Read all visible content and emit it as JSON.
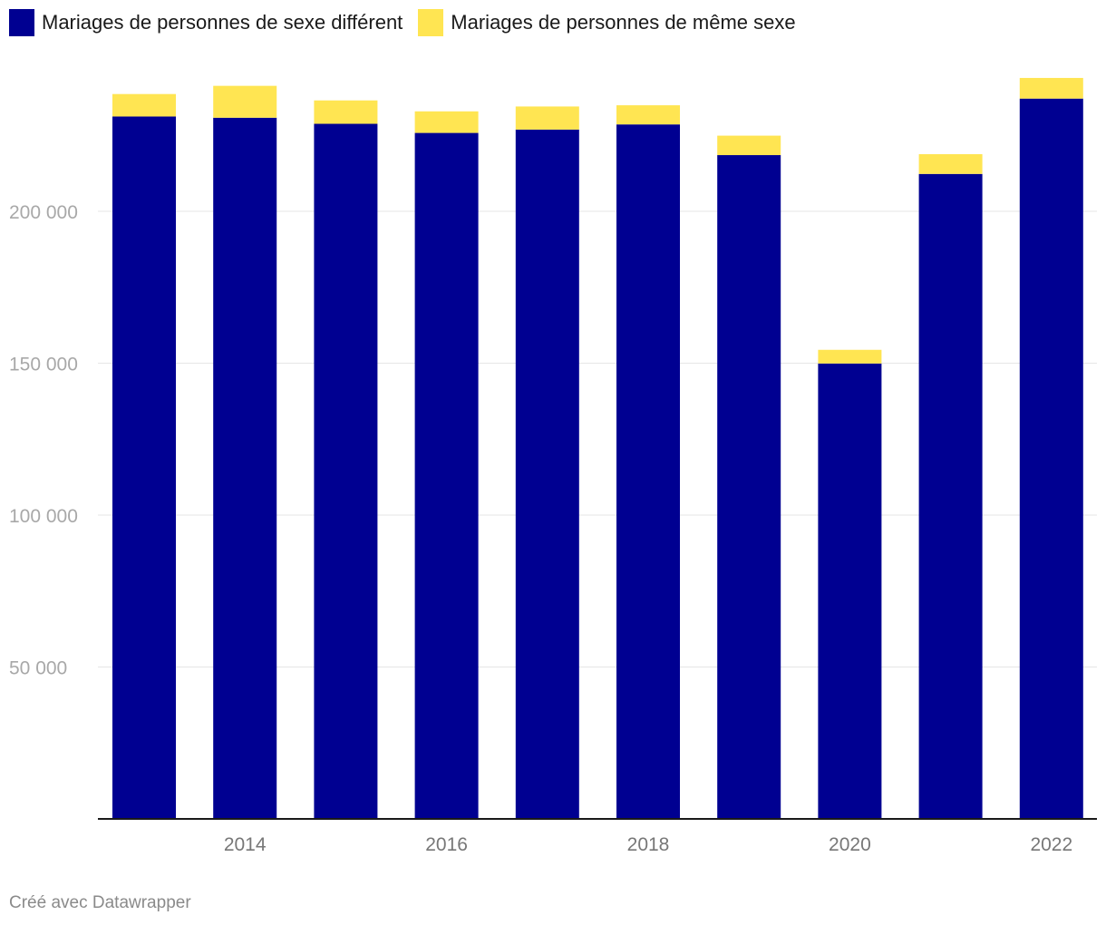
{
  "legend": [
    {
      "label": "Mariages de personnes de sexe différent",
      "color": "#000091"
    },
    {
      "label": "Mariages de personnes de même sexe",
      "color": "#ffe552"
    }
  ],
  "footer": {
    "credit": "Créé avec Datawrapper"
  },
  "chart_data": {
    "type": "bar",
    "stacked": true,
    "categories": [
      "2013",
      "2014",
      "2015",
      "2016",
      "2017",
      "2018",
      "2019",
      "2020",
      "2021",
      "2022"
    ],
    "x_tick_labels": [
      "2014",
      "2016",
      "2018",
      "2020",
      "2022"
    ],
    "series": [
      {
        "name": "Mariages de personnes de sexe différent",
        "color": "#000091",
        "values": [
          231200,
          230800,
          228800,
          225800,
          226900,
          228600,
          218500,
          149900,
          212300,
          237100
        ]
      },
      {
        "name": "Mariages de personnes de même sexe",
        "color": "#ffe552",
        "values": [
          7400,
          10500,
          7700,
          7100,
          7600,
          6300,
          6400,
          4500,
          6500,
          6800
        ]
      }
    ],
    "y_ticks": [
      50000,
      100000,
      150000,
      200000
    ],
    "y_tick_labels": [
      "50 000",
      "100 000",
      "150 000",
      "200 000"
    ],
    "ylim": [
      0,
      250000
    ],
    "grid": true,
    "legend_position": "top-left"
  }
}
